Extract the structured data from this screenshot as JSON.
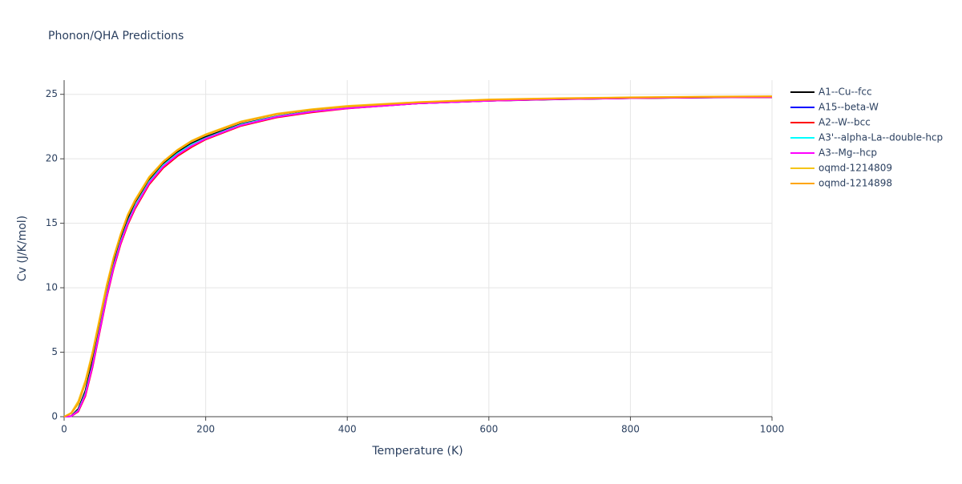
{
  "chart_data": {
    "type": "line",
    "title": "Phonon/QHA Predictions",
    "x_label": "Temperature (K)",
    "y_label": "Cv (J/K/mol)",
    "x": [
      0,
      10,
      20,
      30,
      40,
      50,
      60,
      70,
      80,
      90,
      100,
      120,
      140,
      160,
      180,
      200,
      250,
      300,
      350,
      400,
      500,
      600,
      700,
      800,
      900,
      1000
    ],
    "xlim": [
      0,
      1000
    ],
    "xticks": [
      0,
      200,
      400,
      600,
      800,
      1000
    ],
    "ylim": [
      0,
      26.1
    ],
    "yticks": [
      0,
      5,
      10,
      15,
      20,
      25
    ],
    "grid": true,
    "series": [
      {
        "name": "A1--Cu--fcc",
        "color": "#000000",
        "values": [
          0,
          0.05,
          0.6,
          2.0,
          4.3,
          7.0,
          9.7,
          12.0,
          13.9,
          15.4,
          16.6,
          18.4,
          19.6,
          20.5,
          21.2,
          21.7,
          22.7,
          23.3,
          23.7,
          23.95,
          24.3,
          24.5,
          24.62,
          24.7,
          24.75,
          24.78
        ]
      },
      {
        "name": "A15--beta-W",
        "color": "#0000ff",
        "values": [
          0,
          0.03,
          0.45,
          1.7,
          3.9,
          6.6,
          9.3,
          11.6,
          13.5,
          15.0,
          16.2,
          18.1,
          19.4,
          20.3,
          21.0,
          21.55,
          22.6,
          23.25,
          23.65,
          23.92,
          24.3,
          24.5,
          24.63,
          24.7,
          24.76,
          24.78
        ]
      },
      {
        "name": "A2--W--bcc",
        "color": "#ff0000",
        "values": [
          0,
          0.03,
          0.4,
          1.6,
          3.8,
          6.5,
          9.2,
          11.5,
          13.4,
          14.9,
          16.1,
          18.0,
          19.3,
          20.2,
          20.9,
          21.5,
          22.55,
          23.2,
          23.6,
          23.9,
          24.3,
          24.5,
          24.63,
          24.7,
          24.76,
          24.78
        ]
      },
      {
        "name": "A3'--alpha-La--double-hcp",
        "color": "#00ffff",
        "values": [
          0,
          0.04,
          0.5,
          1.8,
          4.0,
          6.7,
          9.4,
          11.7,
          13.6,
          15.1,
          16.3,
          18.2,
          19.5,
          20.4,
          21.1,
          21.6,
          22.65,
          23.28,
          23.68,
          23.94,
          24.32,
          24.52,
          24.64,
          24.72,
          24.78,
          24.8
        ]
      },
      {
        "name": "A3--Mg--hcp",
        "color": "#ff00ff",
        "values": [
          0,
          0.04,
          0.45,
          1.7,
          3.9,
          6.6,
          9.3,
          11.6,
          13.5,
          15.0,
          16.2,
          18.1,
          19.4,
          20.3,
          21.0,
          21.55,
          22.6,
          23.25,
          23.65,
          23.92,
          24.3,
          24.5,
          24.63,
          24.71,
          24.77,
          24.79
        ]
      },
      {
        "name": "oqmd-1214809",
        "color": "#f5c518",
        "values": [
          0,
          0.3,
          1.2,
          2.8,
          5.0,
          7.6,
          10.2,
          12.4,
          14.2,
          15.7,
          16.8,
          18.6,
          19.8,
          20.7,
          21.4,
          21.9,
          22.9,
          23.5,
          23.85,
          24.1,
          24.4,
          24.6,
          24.7,
          24.77,
          24.82,
          24.85
        ]
      },
      {
        "name": "oqmd-1214898",
        "color": "#ffa500",
        "values": [
          0,
          0.25,
          1.0,
          2.6,
          4.8,
          7.4,
          10.0,
          12.3,
          14.1,
          15.6,
          16.7,
          18.5,
          19.75,
          20.65,
          21.35,
          21.85,
          22.85,
          23.45,
          23.8,
          24.05,
          24.38,
          24.58,
          24.68,
          24.75,
          24.8,
          24.83
        ]
      }
    ]
  }
}
